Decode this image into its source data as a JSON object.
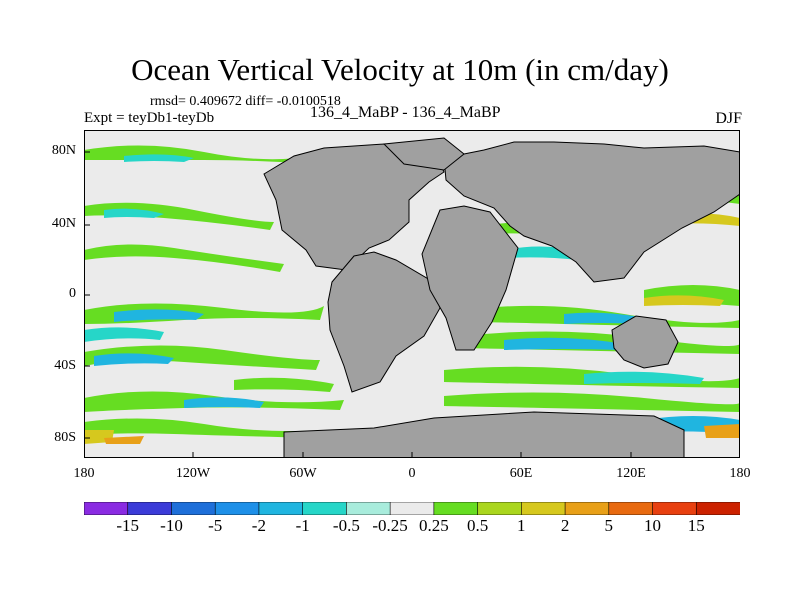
{
  "title": "Ocean Vertical Velocity at 10m (in cm/day)",
  "stats_line": "rmsd= 0.409672  diff= -0.0100518",
  "experiment_label": "Expt = teyDb1-teyDb",
  "runs_label": "136_4_MaBP - 136_4_MaBP",
  "season_label": "DJF",
  "lat_labels": [
    "80N",
    "40N",
    "0",
    "40S",
    "80S"
  ],
  "lon_labels": [
    "180",
    "120W",
    "60W",
    "0",
    "60E",
    "120E",
    "180"
  ],
  "colorbar": {
    "labels": [
      "-15",
      "-10",
      "-5",
      "-2",
      "-1",
      "-0.5",
      "-0.25",
      "0.25",
      "0.5",
      "1",
      "2",
      "5",
      "10",
      "15"
    ],
    "colors": [
      "#8a2be2",
      "#3b3bd8",
      "#1e6fd9",
      "#1e90e8",
      "#20b5e0",
      "#26d6c8",
      "#a8ecdc",
      "#ebebeb",
      "#66dd22",
      "#aad61e",
      "#d6c81e",
      "#e8a018",
      "#e86a10",
      "#e84010",
      "#cc2200"
    ]
  },
  "colors": {
    "land": "#a0a0a0",
    "ocean_neutral": "#ebebeb"
  }
}
